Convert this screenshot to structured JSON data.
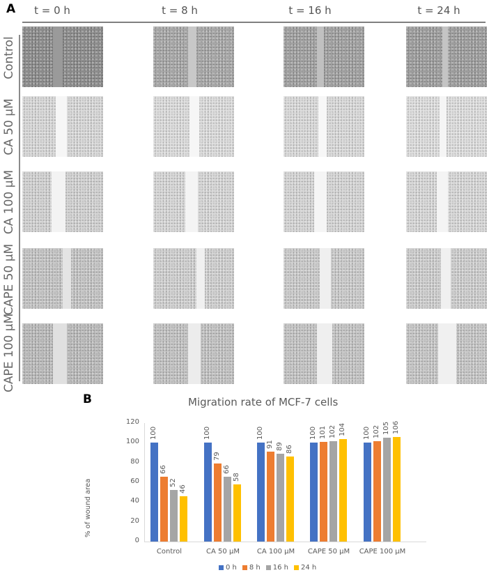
{
  "panel_a": {
    "letter": "A",
    "columns": [
      "t = 0 h",
      "t = 8 h",
      "t = 16 h",
      "t = 24 h"
    ],
    "rows": [
      {
        "label": "Control",
        "tone": [
          "#8e8e8e",
          "#aaaaaa",
          "#a3a3a3",
          "#a0a0a0"
        ],
        "wound": [
          [
            44,
            14
          ],
          [
            50,
            12
          ],
          [
            48,
            10
          ],
          [
            52,
            8
          ]
        ],
        "wound_color": [
          "#9a9a9a",
          "#c8c8c8",
          "#c0c0c0",
          "#c4c4c4"
        ]
      },
      {
        "label": "CA 50 μM",
        "tone": [
          "#dcdcdc",
          "#e0e0e0",
          "#dedede",
          "#e2e2e2"
        ],
        "wound": [
          [
            48,
            16
          ],
          [
            52,
            14
          ],
          [
            50,
            12
          ],
          [
            48,
            10
          ]
        ],
        "wound_color": [
          "#f6f6f6",
          "#f6f6f6",
          "#f7f7f7",
          "#f5f5f5"
        ]
      },
      {
        "label": "CA 100 μM",
        "tone": [
          "#d6d6d6",
          "#dbdbdb",
          "#dadada",
          "#dcdcdc"
        ],
        "wound": [
          [
            42,
            20
          ],
          [
            46,
            18
          ],
          [
            44,
            18
          ],
          [
            44,
            16
          ]
        ],
        "wound_color": [
          "#f3f3f3",
          "#f4f4f4",
          "#f5f5f5",
          "#f4f4f4"
        ]
      },
      {
        "label": "CAPE 50 μM",
        "tone": [
          "#c8c8c8",
          "#d4d4d4",
          "#cfcfcf",
          "#d2d2d2"
        ],
        "wound": [
          [
            58,
            12
          ],
          [
            62,
            12
          ],
          [
            52,
            16
          ],
          [
            50,
            14
          ]
        ],
        "wound_color": [
          "#e4e4e4",
          "#f0f0f0",
          "#efefef",
          "#f0f0f0"
        ]
      },
      {
        "label": "CAPE 100 μM",
        "tone": [
          "#bebebe",
          "#c6c6c6",
          "#c8c8c8",
          "#cacaca"
        ],
        "wound": [
          [
            44,
            20
          ],
          [
            50,
            18
          ],
          [
            48,
            22
          ],
          [
            46,
            26
          ]
        ],
        "wound_color": [
          "#e0e0e0",
          "#ececec",
          "#efefef",
          "#f0f0f0"
        ]
      }
    ]
  },
  "panel_b": {
    "letter": "B"
  },
  "chart_data": {
    "type": "bar",
    "title": "Migration rate of MCF-7 cells",
    "xlabel": "",
    "ylabel": "% of wound area",
    "ylim": [
      0,
      120
    ],
    "yticks": [
      "0",
      "20",
      "40",
      "60",
      "80",
      "100",
      "120"
    ],
    "grid": false,
    "legend_position": "bottom",
    "categories": [
      "Control",
      "CA 50 μM",
      "CA 100 μM",
      "CAPE 50 μM",
      "CAPE 100 μM"
    ],
    "series": [
      {
        "name": "0 h",
        "color": "#4472c4",
        "values": [
          100,
          100,
          100,
          100,
          100
        ]
      },
      {
        "name": "8 h",
        "color": "#ed7d31",
        "values": [
          66,
          79,
          91,
          101,
          102
        ]
      },
      {
        "name": "16 h",
        "color": "#a5a5a5",
        "values": [
          52,
          66,
          89,
          102,
          105
        ]
      },
      {
        "name": "24 h",
        "color": "#ffc000",
        "values": [
          46,
          58,
          86,
          104,
          106
        ]
      }
    ]
  }
}
